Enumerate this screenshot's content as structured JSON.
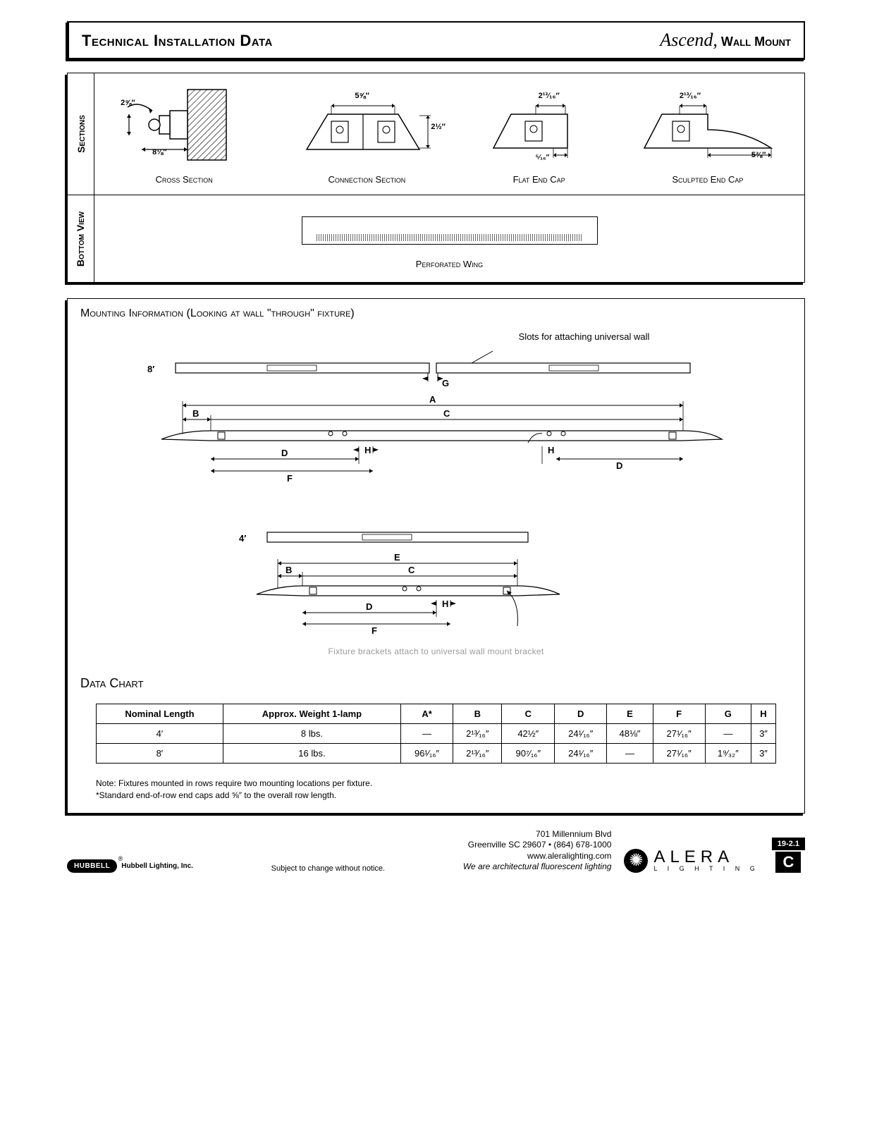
{
  "header": {
    "title": "Technical Installation Data",
    "product_script": "Ascend,",
    "product_suffix": " Wall Mount"
  },
  "sections": {
    "side_label": "Sections",
    "items": [
      {
        "caption": "Cross Section",
        "dim_top": "2⅝″",
        "dim_bottom": "8⅛″"
      },
      {
        "caption": "Connection Section",
        "dim_top": "5⅝″",
        "dim_side": "2½″"
      },
      {
        "caption": "Flat End Cap",
        "dim_top": "2¹³⁄₁₆″",
        "dim_bottom": "⁵⁄₁₆″"
      },
      {
        "caption": "Sculpted End Cap",
        "dim_top": "2¹³⁄₁₆″",
        "dim_bottom": "5⅜″"
      }
    ]
  },
  "bottom_view": {
    "side_label": "Bottom View",
    "caption": "Perforated Wing"
  },
  "mounting": {
    "title": "Mounting Information (Looking at wall \"through\" fixture)",
    "slot_note": "Slots for attaching universal wall",
    "labels": {
      "len8": "8′",
      "len4": "4′"
    },
    "bracket_note": "Fixture brackets attach to universal wall mount bracket"
  },
  "data_chart": {
    "title": "Data Chart",
    "columns": [
      "Nominal Length",
      "Approx. Weight 1-lamp",
      "A*",
      "B",
      "C",
      "D",
      "E",
      "F",
      "G",
      "H"
    ],
    "rows": [
      [
        "4′",
        "8 lbs.",
        "—",
        "2¹³⁄₁₆″",
        "42½″",
        "24¹⁄₁₆″",
        "48⅛″",
        "27¹⁄₁₆″",
        "—",
        "3″"
      ],
      [
        "8′",
        "16 lbs.",
        "96¹⁄₁₆″",
        "2¹³⁄₁₆″",
        "90⁷⁄₁₆″",
        "24¹⁄₁₆″",
        "—",
        "27¹⁄₁₆″",
        "1⁹⁄₃₂″",
        "3″"
      ]
    ],
    "note1": "Note: Fixtures mounted in rows require two mounting locations per fixture.",
    "note2": "*Standard end-of-row end caps add ⅝″ to the overall row length."
  },
  "footer": {
    "hubbell": "HUBBELL",
    "hubbell_co": "Hubbell Lighting, Inc.",
    "reg": "®",
    "disclaimer": "Subject to change without notice.",
    "addr1": "701 Millennium Blvd",
    "addr2": "Greenville SC 29607  •  (864) 678-1000",
    "addr3": "www.aleralighting.com",
    "tagline": "We are architectural fluorescent lighting",
    "alera_name": "ALERA",
    "alera_sub": "L I G H T I N G",
    "page_code_top": "19-2.1",
    "page_code_bot": "C"
  },
  "colors": {
    "ink": "#000000",
    "bg": "#ffffff",
    "hatch": "#888888"
  }
}
